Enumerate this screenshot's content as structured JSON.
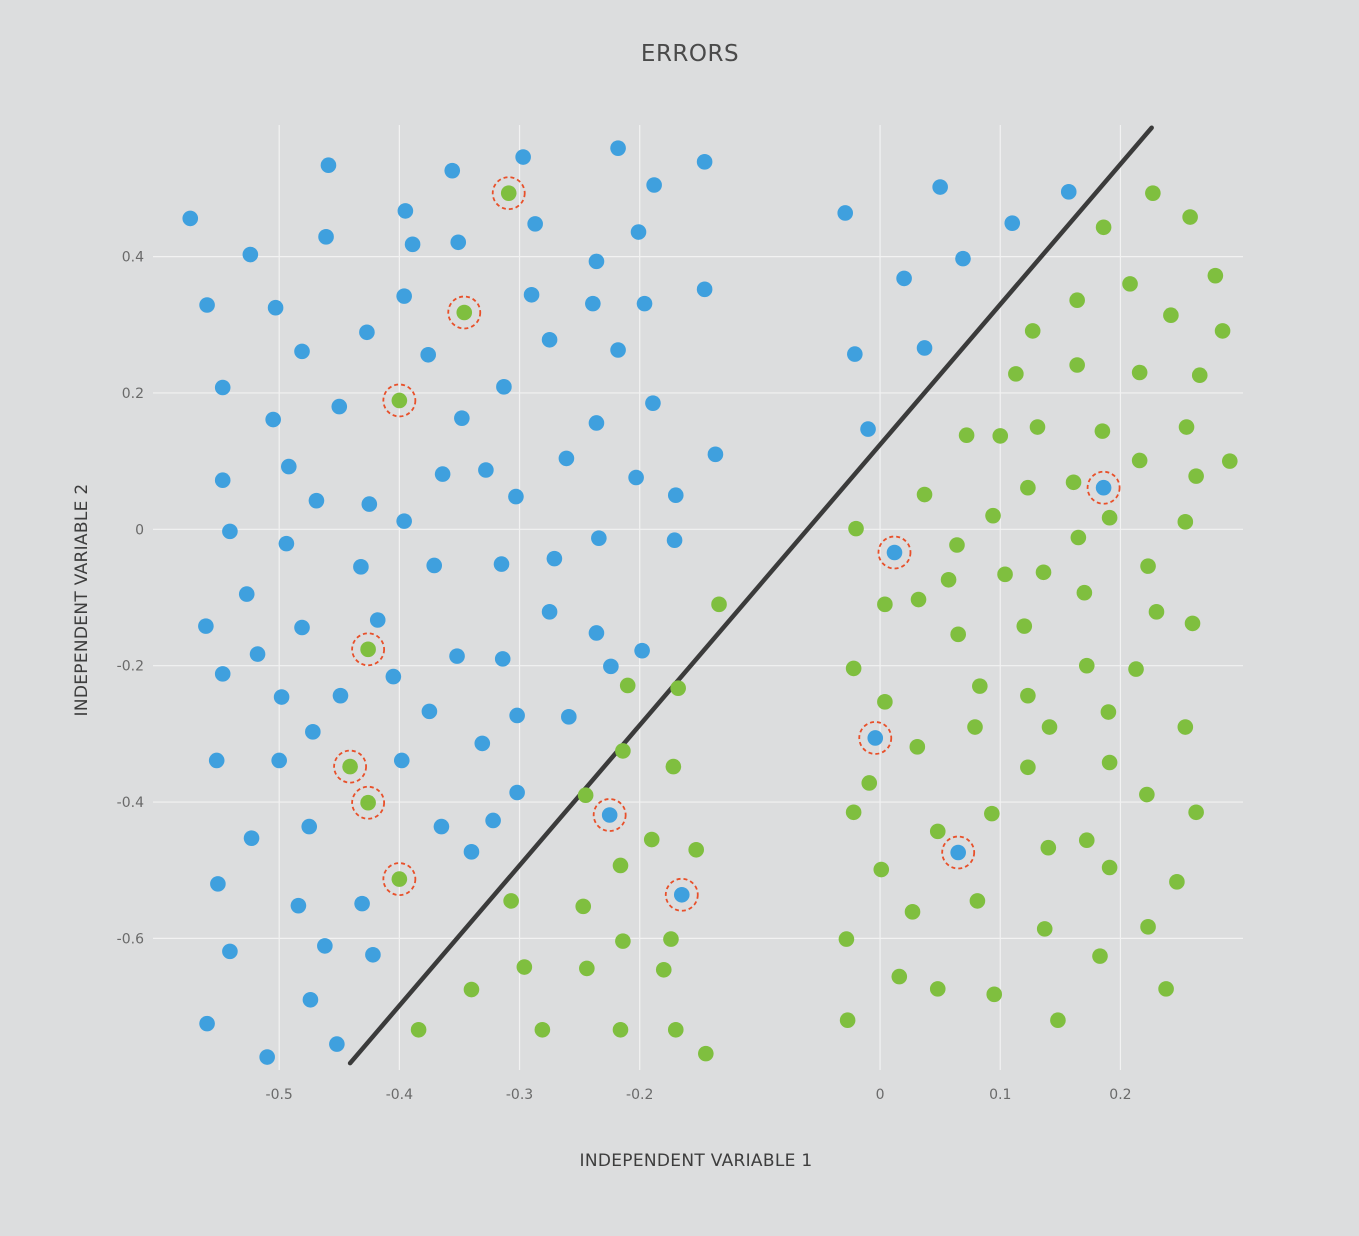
{
  "chart_data": {
    "type": "scatter",
    "title": "ERRORS",
    "xlabel": "INDEPENDENT VARIABLE 1",
    "ylabel": "INDEPENDENT VARIABLE 2",
    "xlim": [
      -0.605,
      0.302
    ],
    "ylim": [
      -0.793,
      0.593
    ],
    "xticks": [
      -0.5,
      -0.4,
      -0.3,
      -0.2,
      0,
      0.1,
      0.2
    ],
    "xtick_labels": [
      "-0.5",
      "-0.4",
      "-0.3",
      "-0.2",
      "0",
      "0.1",
      "0.2"
    ],
    "xgrid": [
      -0.5,
      -0.4,
      -0.3,
      -0.2,
      0,
      0.1,
      0.2
    ],
    "yticks": [
      0.4,
      0.2,
      0,
      -0.2,
      -0.4,
      -0.6
    ],
    "ytick_labels": [
      "0.4",
      "0.2",
      "0",
      "-0.2",
      "-0.4",
      "-0.6"
    ],
    "ygrid": [
      0.4,
      0.2,
      0,
      -0.2,
      -0.4,
      -0.6
    ],
    "grid": true,
    "legend": "none",
    "colors": {
      "background": "#dcddde",
      "class_a": "#3fa0de",
      "class_b": "#7fbf3f",
      "boundary": "#3b3b3b",
      "error_ring": "#e8502a",
      "grid": "#f2f2f2"
    },
    "decision_boundary": {
      "x1": -0.441,
      "y1": -0.783,
      "x2": 0.226,
      "y2": 0.589
    },
    "series": [
      {
        "class": "class_a",
        "points": [
          [
            -0.574,
            0.456
          ],
          [
            -0.459,
            0.534
          ],
          [
            -0.356,
            0.526
          ],
          [
            -0.297,
            0.546
          ],
          [
            -0.218,
            0.559
          ],
          [
            -0.188,
            0.505
          ],
          [
            -0.146,
            0.539
          ],
          [
            -0.029,
            0.464
          ],
          [
            0.05,
            0.502
          ],
          [
            0.157,
            0.495
          ],
          [
            -0.524,
            0.403
          ],
          [
            -0.461,
            0.429
          ],
          [
            -0.395,
            0.467
          ],
          [
            -0.389,
            0.418
          ],
          [
            -0.351,
            0.421
          ],
          [
            -0.287,
            0.448
          ],
          [
            -0.236,
            0.393
          ],
          [
            -0.201,
            0.436
          ],
          [
            0.02,
            0.368
          ],
          [
            0.069,
            0.397
          ],
          [
            0.11,
            0.449
          ],
          [
            -0.56,
            0.329
          ],
          [
            -0.503,
            0.325
          ],
          [
            -0.396,
            0.342
          ],
          [
            -0.427,
            0.289
          ],
          [
            -0.481,
            0.261
          ],
          [
            -0.376,
            0.256
          ],
          [
            -0.29,
            0.344
          ],
          [
            -0.239,
            0.331
          ],
          [
            -0.196,
            0.331
          ],
          [
            -0.146,
            0.352
          ],
          [
            -0.275,
            0.278
          ],
          [
            -0.218,
            0.263
          ],
          [
            -0.021,
            0.257
          ],
          [
            0.037,
            0.266
          ],
          [
            -0.547,
            0.208
          ],
          [
            -0.313,
            0.209
          ],
          [
            -0.45,
            0.18
          ],
          [
            -0.505,
            0.161
          ],
          [
            -0.348,
            0.163
          ],
          [
            -0.236,
            0.156
          ],
          [
            -0.189,
            0.185
          ],
          [
            -0.01,
            0.147
          ],
          [
            -0.137,
            0.11
          ],
          [
            -0.261,
            0.104
          ],
          [
            -0.492,
            0.092
          ],
          [
            -0.547,
            0.072
          ],
          [
            -0.364,
            0.081
          ],
          [
            -0.328,
            0.087
          ],
          [
            -0.469,
            0.042
          ],
          [
            -0.425,
            0.037
          ],
          [
            -0.303,
            0.048
          ],
          [
            -0.203,
            0.076
          ],
          [
            -0.17,
            0.05
          ],
          [
            -0.396,
            0.012
          ],
          [
            -0.541,
            -0.003
          ],
          [
            -0.494,
            -0.021
          ],
          [
            -0.234,
            -0.013
          ],
          [
            -0.171,
            -0.016
          ],
          [
            -0.432,
            -0.055
          ],
          [
            -0.371,
            -0.053
          ],
          [
            -0.315,
            -0.051
          ],
          [
            -0.271,
            -0.043
          ],
          [
            -0.527,
            -0.095
          ],
          [
            -0.561,
            -0.142
          ],
          [
            -0.481,
            -0.144
          ],
          [
            -0.418,
            -0.133
          ],
          [
            -0.275,
            -0.121
          ],
          [
            -0.236,
            -0.152
          ],
          [
            -0.198,
            -0.178
          ],
          [
            -0.518,
            -0.183
          ],
          [
            -0.352,
            -0.186
          ],
          [
            -0.314,
            -0.19
          ],
          [
            -0.224,
            -0.201
          ],
          [
            -0.547,
            -0.212
          ],
          [
            -0.405,
            -0.216
          ],
          [
            -0.498,
            -0.246
          ],
          [
            -0.449,
            -0.244
          ],
          [
            -0.375,
            -0.267
          ],
          [
            -0.302,
            -0.273
          ],
          [
            -0.259,
            -0.275
          ],
          [
            -0.472,
            -0.297
          ],
          [
            -0.331,
            -0.314
          ],
          [
            -0.552,
            -0.339
          ],
          [
            -0.5,
            -0.339
          ],
          [
            -0.398,
            -0.339
          ],
          [
            -0.302,
            -0.386
          ],
          [
            -0.475,
            -0.436
          ],
          [
            -0.365,
            -0.436
          ],
          [
            -0.322,
            -0.427
          ],
          [
            -0.523,
            -0.453
          ],
          [
            -0.34,
            -0.473
          ],
          [
            -0.551,
            -0.52
          ],
          [
            -0.484,
            -0.552
          ],
          [
            -0.431,
            -0.549
          ],
          [
            -0.462,
            -0.611
          ],
          [
            -0.541,
            -0.619
          ],
          [
            -0.422,
            -0.624
          ],
          [
            -0.474,
            -0.69
          ],
          [
            -0.56,
            -0.725
          ],
          [
            -0.452,
            -0.755
          ],
          [
            -0.51,
            -0.774
          ],
          [
            0.012,
            -0.034
          ],
          [
            0.186,
            0.061
          ],
          [
            -0.004,
            -0.306
          ],
          [
            -0.225,
            -0.419
          ],
          [
            0.065,
            -0.474
          ],
          [
            -0.165,
            -0.536
          ]
        ]
      },
      {
        "class": "class_b",
        "points": [
          [
            0.227,
            0.493
          ],
          [
            0.258,
            0.458
          ],
          [
            0.186,
            0.443
          ],
          [
            0.279,
            0.372
          ],
          [
            0.208,
            0.36
          ],
          [
            0.164,
            0.336
          ],
          [
            0.242,
            0.314
          ],
          [
            0.127,
            0.291
          ],
          [
            0.285,
            0.291
          ],
          [
            0.164,
            0.241
          ],
          [
            0.216,
            0.23
          ],
          [
            0.113,
            0.228
          ],
          [
            0.266,
            0.226
          ],
          [
            0.072,
            0.138
          ],
          [
            0.1,
            0.137
          ],
          [
            0.131,
            0.15
          ],
          [
            0.185,
            0.144
          ],
          [
            0.255,
            0.15
          ],
          [
            0.216,
            0.101
          ],
          [
            0.291,
            0.1
          ],
          [
            0.263,
            0.078
          ],
          [
            0.161,
            0.069
          ],
          [
            0.123,
            0.061
          ],
          [
            0.037,
            0.051
          ],
          [
            0.094,
            0.02
          ],
          [
            0.191,
            0.017
          ],
          [
            0.254,
            0.011
          ],
          [
            -0.02,
            0.001
          ],
          [
            0.064,
            -0.023
          ],
          [
            0.165,
            -0.012
          ],
          [
            0.223,
            -0.054
          ],
          [
            0.104,
            -0.066
          ],
          [
            0.136,
            -0.063
          ],
          [
            0.057,
            -0.074
          ],
          [
            0.17,
            -0.093
          ],
          [
            0.032,
            -0.103
          ],
          [
            0.004,
            -0.11
          ],
          [
            -0.134,
            -0.11
          ],
          [
            0.23,
            -0.121
          ],
          [
            0.26,
            -0.138
          ],
          [
            0.12,
            -0.142
          ],
          [
            0.065,
            -0.154
          ],
          [
            -0.022,
            -0.204
          ],
          [
            0.172,
            -0.2
          ],
          [
            0.213,
            -0.205
          ],
          [
            -0.21,
            -0.229
          ],
          [
            -0.168,
            -0.233
          ],
          [
            0.083,
            -0.23
          ],
          [
            0.123,
            -0.244
          ],
          [
            0.004,
            -0.253
          ],
          [
            0.19,
            -0.268
          ],
          [
            0.079,
            -0.29
          ],
          [
            0.141,
            -0.29
          ],
          [
            0.254,
            -0.29
          ],
          [
            0.031,
            -0.319
          ],
          [
            -0.214,
            -0.325
          ],
          [
            0.191,
            -0.342
          ],
          [
            0.123,
            -0.349
          ],
          [
            -0.172,
            -0.348
          ],
          [
            -0.009,
            -0.372
          ],
          [
            -0.245,
            -0.39
          ],
          [
            0.222,
            -0.389
          ],
          [
            -0.022,
            -0.415
          ],
          [
            0.093,
            -0.417
          ],
          [
            0.263,
            -0.415
          ],
          [
            0.048,
            -0.443
          ],
          [
            -0.19,
            -0.455
          ],
          [
            -0.153,
            -0.47
          ],
          [
            0.14,
            -0.467
          ],
          [
            0.172,
            -0.456
          ],
          [
            -0.216,
            -0.493
          ],
          [
            0.001,
            -0.499
          ],
          [
            0.191,
            -0.496
          ],
          [
            0.247,
            -0.517
          ],
          [
            -0.307,
            -0.545
          ],
          [
            -0.247,
            -0.553
          ],
          [
            0.081,
            -0.545
          ],
          [
            0.027,
            -0.561
          ],
          [
            -0.214,
            -0.604
          ],
          [
            -0.174,
            -0.601
          ],
          [
            -0.028,
            -0.601
          ],
          [
            0.137,
            -0.586
          ],
          [
            0.223,
            -0.583
          ],
          [
            0.183,
            -0.626
          ],
          [
            -0.296,
            -0.642
          ],
          [
            -0.244,
            -0.644
          ],
          [
            -0.18,
            -0.646
          ],
          [
            0.016,
            -0.656
          ],
          [
            0.048,
            -0.674
          ],
          [
            0.095,
            -0.682
          ],
          [
            0.238,
            -0.674
          ],
          [
            -0.34,
            -0.675
          ],
          [
            -0.384,
            -0.734
          ],
          [
            -0.281,
            -0.734
          ],
          [
            -0.216,
            -0.734
          ],
          [
            -0.17,
            -0.734
          ],
          [
            -0.027,
            -0.72
          ],
          [
            0.148,
            -0.72
          ],
          [
            -0.145,
            -0.769
          ],
          [
            -0.309,
            0.493
          ],
          [
            -0.346,
            0.318
          ],
          [
            -0.4,
            0.189
          ],
          [
            -0.426,
            -0.176
          ],
          [
            -0.441,
            -0.348
          ],
          [
            -0.426,
            -0.401
          ],
          [
            -0.4,
            -0.513
          ]
        ]
      }
    ],
    "misclassified": [
      [
        -0.309,
        0.493
      ],
      [
        -0.346,
        0.318
      ],
      [
        -0.4,
        0.189
      ],
      [
        -0.426,
        -0.176
      ],
      [
        -0.441,
        -0.348
      ],
      [
        -0.426,
        -0.401
      ],
      [
        -0.4,
        -0.513
      ],
      [
        0.012,
        -0.034
      ],
      [
        0.186,
        0.061
      ],
      [
        -0.004,
        -0.306
      ],
      [
        -0.225,
        -0.419
      ],
      [
        0.065,
        -0.474
      ],
      [
        -0.165,
        -0.536
      ]
    ]
  }
}
